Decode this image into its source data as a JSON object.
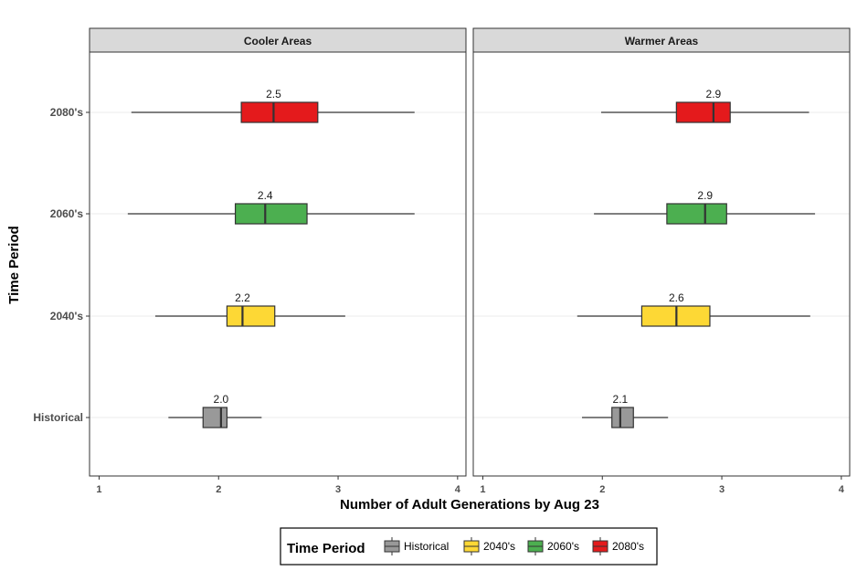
{
  "chart_data": {
    "type": "boxplot",
    "orientation": "horizontal",
    "xlabel": "Number of Adult Generations by Aug 23",
    "ylabel": "Time Period",
    "xlim": [
      0.92,
      4.07
    ],
    "x_ticks": [
      1,
      2,
      3,
      4
    ],
    "categories": [
      "Historical",
      "2040's",
      "2060's",
      "2080's"
    ],
    "grid": "horizontal major lines",
    "legend": {
      "title": "Time Period",
      "position": "bottom",
      "entries": [
        {
          "label": "Historical",
          "color": "#999999"
        },
        {
          "label": "2040's",
          "color": "#FDD835"
        },
        {
          "label": "2060's",
          "color": "#4CAF50"
        },
        {
          "label": "2080's",
          "color": "#E41A1C"
        }
      ]
    },
    "panels": [
      {
        "title": "Cooler Areas",
        "boxes": [
          {
            "category": "Historical",
            "whisker_low": 1.58,
            "q1": 1.87,
            "median": 2.02,
            "q3": 2.07,
            "whisker_high": 2.36,
            "label": "2.0"
          },
          {
            "category": "2040's",
            "whisker_low": 1.47,
            "q1": 2.07,
            "median": 2.2,
            "q3": 2.47,
            "whisker_high": 3.06,
            "label": "2.2"
          },
          {
            "category": "2060's",
            "whisker_low": 1.24,
            "q1": 2.14,
            "median": 2.39,
            "q3": 2.74,
            "whisker_high": 3.64,
            "label": "2.4"
          },
          {
            "category": "2080's",
            "whisker_low": 1.27,
            "q1": 2.19,
            "median": 2.46,
            "q3": 2.83,
            "whisker_high": 3.64,
            "label": "2.5"
          }
        ]
      },
      {
        "title": "Warmer Areas",
        "boxes": [
          {
            "category": "Historical",
            "whisker_low": 1.83,
            "q1": 2.08,
            "median": 2.15,
            "q3": 2.26,
            "whisker_high": 2.55,
            "label": "2.1"
          },
          {
            "category": "2040's",
            "whisker_low": 1.79,
            "q1": 2.33,
            "median": 2.62,
            "q3": 2.9,
            "whisker_high": 3.74,
            "label": "2.6"
          },
          {
            "category": "2060's",
            "whisker_low": 1.93,
            "q1": 2.54,
            "median": 2.86,
            "q3": 3.04,
            "whisker_high": 3.78,
            "label": "2.9"
          },
          {
            "category": "2080's",
            "whisker_low": 1.99,
            "q1": 2.62,
            "median": 2.93,
            "q3": 3.07,
            "whisker_high": 3.73,
            "label": "2.9"
          }
        ]
      }
    ]
  }
}
